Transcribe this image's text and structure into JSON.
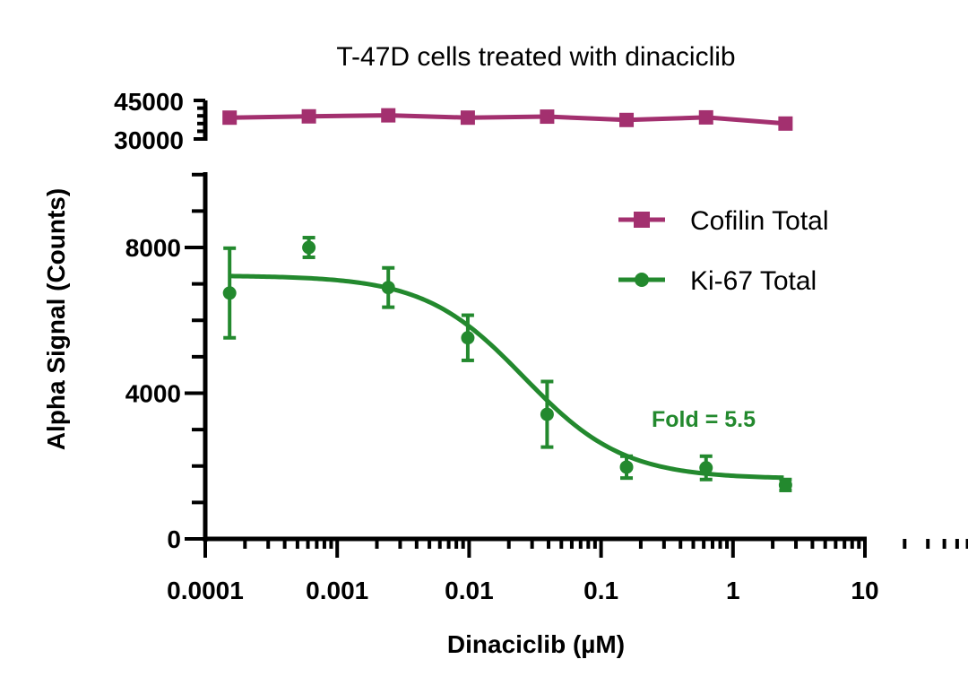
{
  "chart_data": {
    "type": "scatter",
    "title": "T-47D cells treated with dinaciclib",
    "xlabel": "Dinaciclib (µM)",
    "ylabel": "Alpha Signal (Counts)",
    "xscale": "log",
    "xlim": [
      0.0001,
      10
    ],
    "x_ticks": [
      "0.0001",
      "0.001",
      "0.01",
      "0.1",
      "1",
      "10"
    ],
    "y_axis_broken": true,
    "ylim_lower": [
      0,
      10000
    ],
    "y_ticks_lower": [
      "0",
      "4000",
      "8000"
    ],
    "ylim_upper": [
      30000,
      45000
    ],
    "y_ticks_upper": [
      "30000",
      "45000"
    ],
    "grid": false,
    "legend_position": "top-right",
    "x": [
      0.000153,
      0.00061,
      0.00244,
      0.00977,
      0.039,
      0.156,
      0.625,
      2.5
    ],
    "series": [
      {
        "name": "Cofilin Total",
        "color": "#A3306F",
        "marker": "square",
        "values": [
          38300,
          38800,
          39200,
          38300,
          38700,
          37400,
          38400,
          36000
        ],
        "fit_line": "connected"
      },
      {
        "name": "Ki-67 Total",
        "color": "#23892E",
        "marker": "circle",
        "values": [
          6750,
          8000,
          6900,
          5520,
          3420,
          1970,
          1950,
          1480
        ],
        "errors": [
          1230,
          270,
          540,
          620,
          900,
          300,
          320,
          150
        ],
        "fit": {
          "model": "4PL",
          "top": 7230,
          "bottom": 1650,
          "ic50": 0.026,
          "hill": 1.15
        }
      }
    ],
    "annotations": [
      {
        "text": "Fold = 5.5",
        "color": "#23892E"
      }
    ]
  }
}
